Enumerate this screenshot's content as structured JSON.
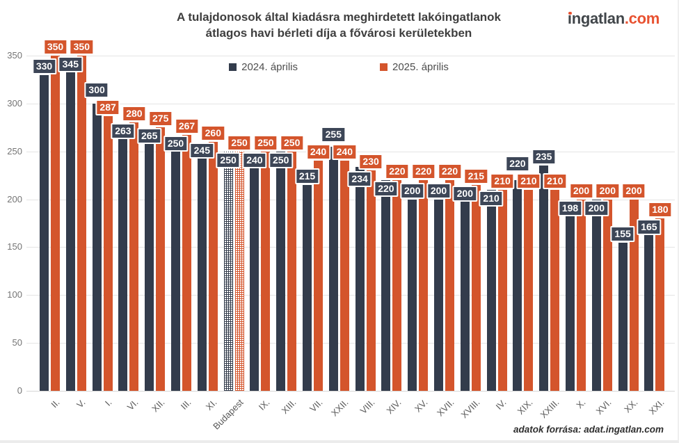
{
  "header": {
    "title_line1": "A tulajdonosok által kiadásra meghirdetett lakóingatlanok",
    "title_line2": "átlagos havi bérleti díja a fővárosi kerületekben",
    "logo_name": "ingatlan",
    "logo_tld": ".com"
  },
  "footer": {
    "source": "adatok forrása: adat.ingatlan.com"
  },
  "colors": {
    "grid": "#e4e4e4",
    "axis_text": "#747474",
    "category_text": "#595959",
    "title_text": "#3e3e3e",
    "logo_dark": "#41464a",
    "logo_orange": "#e85231",
    "background": "#ffffff"
  },
  "chart_data": {
    "type": "bar",
    "title": "A tulajdonosok által kiadásra meghirdetett lakóingatlanok átlagos havi bérleti díja a fővárosi kerületekben",
    "categories": [
      "II.",
      "V.",
      "I.",
      "VI.",
      "XII.",
      "III.",
      "XI.",
      "Budapest",
      "IX.",
      "XIII.",
      "VII.",
      "XXII.",
      "VIII.",
      "XIV.",
      "XV.",
      "XVII.",
      "XVIII.",
      "IV.",
      "XIX.",
      "XXIII.",
      "X.",
      "XVI.",
      "XX.",
      "XXI."
    ],
    "series": [
      {
        "name": "2024. április",
        "color": "#333c4c",
        "label_bg": "#3d4657",
        "values": [
          330,
          345,
          300,
          263,
          265,
          250,
          245,
          250,
          240,
          250,
          215,
          255,
          234,
          220,
          200,
          200,
          200,
          210,
          220,
          235,
          198,
          200,
          155,
          165
        ]
      },
      {
        "name": "2025. április",
        "color": "#d4552c",
        "label_bg": "#d4552c",
        "values": [
          350,
          350,
          287,
          280,
          275,
          267,
          260,
          250,
          250,
          250,
          240,
          240,
          230,
          220,
          220,
          220,
          215,
          210,
          210,
          210,
          200,
          200,
          200,
          180
        ]
      }
    ],
    "hatched_category": "Budapest",
    "yticks": [
      0,
      50,
      100,
      150,
      200,
      250,
      300,
      350
    ],
    "ylim": [
      0,
      350
    ],
    "grid": true,
    "value_labels": true,
    "legend_position": "top-center"
  }
}
